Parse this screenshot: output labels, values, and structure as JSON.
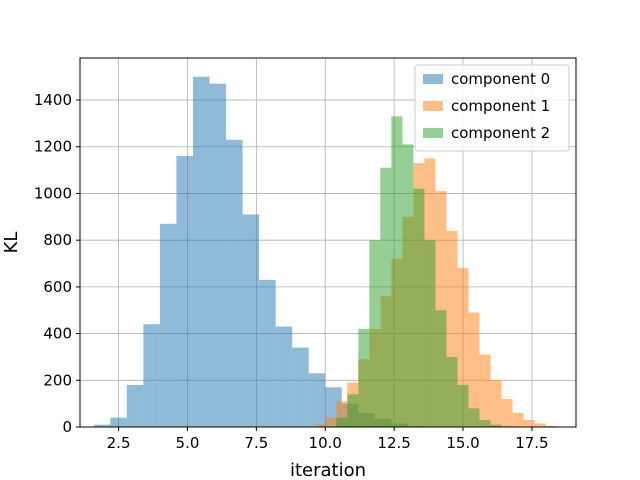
{
  "chart_data": {
    "type": "histogram",
    "xlabel": "iteration",
    "ylabel": "KL",
    "xlim": [
      1.1,
      19.1
    ],
    "ylim": [
      0,
      1580
    ],
    "xticks": [
      2.5,
      5.0,
      7.5,
      10.0,
      12.5,
      15.0,
      17.5
    ],
    "xtick_labels": [
      "2.5",
      "5.0",
      "7.5",
      "10.0",
      "12.5",
      "15.0",
      "17.5"
    ],
    "yticks": [
      0,
      200,
      400,
      600,
      800,
      1000,
      1200,
      1400
    ],
    "ytick_labels": [
      "0",
      "200",
      "400",
      "600",
      "800",
      "1000",
      "1200",
      "1400"
    ],
    "grid": true,
    "legend_position": "top-right",
    "bar_opacity": 0.5,
    "series": [
      {
        "name": "component 0",
        "color": "#1f77b4",
        "bins": [
          [
            1.6,
            2.2,
            10
          ],
          [
            2.2,
            2.8,
            40
          ],
          [
            2.8,
            3.4,
            180
          ],
          [
            3.4,
            4.0,
            440
          ],
          [
            4.0,
            4.6,
            870
          ],
          [
            4.6,
            5.2,
            1160
          ],
          [
            5.2,
            5.8,
            1500
          ],
          [
            5.8,
            6.4,
            1470
          ],
          [
            6.4,
            7.0,
            1230
          ],
          [
            7.0,
            7.6,
            910
          ],
          [
            7.6,
            8.2,
            630
          ],
          [
            8.2,
            8.8,
            430
          ],
          [
            8.8,
            9.4,
            340
          ],
          [
            9.4,
            10.0,
            230
          ],
          [
            10.0,
            10.6,
            170
          ],
          [
            10.6,
            11.2,
            100
          ],
          [
            11.2,
            11.8,
            60
          ],
          [
            11.8,
            12.4,
            35
          ],
          [
            12.4,
            13.0,
            15
          ],
          [
            13.0,
            13.6,
            5
          ]
        ]
      },
      {
        "name": "component 1",
        "color": "#ff7f0e",
        "bins": [
          [
            9.6,
            10.0,
            10
          ],
          [
            10.0,
            10.4,
            40
          ],
          [
            10.4,
            10.8,
            110
          ],
          [
            10.8,
            11.2,
            190
          ],
          [
            11.2,
            11.6,
            290
          ],
          [
            11.6,
            12.0,
            420
          ],
          [
            12.0,
            12.4,
            560
          ],
          [
            12.4,
            12.8,
            720
          ],
          [
            12.8,
            13.2,
            900
          ],
          [
            13.2,
            13.6,
            1130
          ],
          [
            13.6,
            14.0,
            1150
          ],
          [
            14.0,
            14.4,
            1010
          ],
          [
            14.4,
            14.8,
            840
          ],
          [
            14.8,
            15.2,
            680
          ],
          [
            15.2,
            15.6,
            490
          ],
          [
            15.6,
            16.0,
            310
          ],
          [
            16.0,
            16.4,
            200
          ],
          [
            16.4,
            16.8,
            120
          ],
          [
            16.8,
            17.2,
            60
          ],
          [
            17.2,
            17.6,
            30
          ],
          [
            17.6,
            18.0,
            15
          ],
          [
            18.0,
            18.4,
            5
          ],
          [
            18.4,
            18.8,
            2
          ]
        ]
      },
      {
        "name": "component 2",
        "color": "#2ca02c",
        "bins": [
          [
            10.4,
            10.8,
            40
          ],
          [
            10.8,
            11.2,
            140
          ],
          [
            11.2,
            11.6,
            420
          ],
          [
            11.6,
            12.0,
            800
          ],
          [
            12.0,
            12.4,
            1110
          ],
          [
            12.4,
            12.8,
            1330
          ],
          [
            12.8,
            13.2,
            1210
          ],
          [
            13.2,
            13.6,
            1020
          ],
          [
            13.6,
            14.0,
            800
          ],
          [
            14.0,
            14.4,
            500
          ],
          [
            14.4,
            14.8,
            300
          ],
          [
            14.8,
            15.2,
            180
          ],
          [
            15.2,
            15.6,
            80
          ],
          [
            15.6,
            16.0,
            30
          ],
          [
            16.0,
            16.4,
            10
          ],
          [
            16.4,
            16.8,
            3
          ]
        ]
      }
    ]
  }
}
